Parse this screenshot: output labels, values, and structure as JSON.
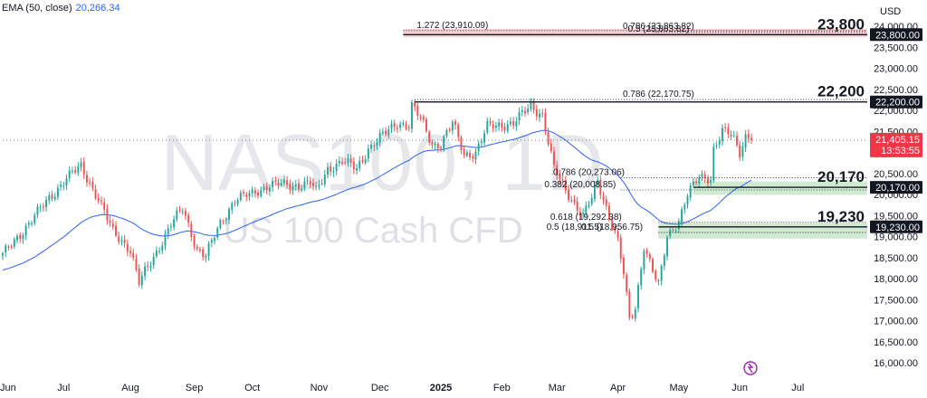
{
  "legend": {
    "name": "EMA (50, close)",
    "value": "20,266.34",
    "color": "#2962ff"
  },
  "watermark": {
    "symbol": "NAS100, 1D",
    "description": "US 100 Cash CFD"
  },
  "axis": {
    "unit": "USD"
  },
  "colors": {
    "up": "#26a69a",
    "down": "#ef5350",
    "ema": "#2962ff",
    "resistance_zone": "#f8c9cc",
    "support_zone": "#c8e6c9",
    "price_tag": "#f23645"
  },
  "chart_data": {
    "type": "candlestick",
    "title": "NAS100, 1D",
    "subtitle": "US 100 Cash CFD",
    "ylabel": "USD",
    "ylim": [
      15800,
      24300
    ],
    "yticks": [
      "16,000.00",
      "16,500.00",
      "17,000.00",
      "17,500.00",
      "18,000.00",
      "18,500.00",
      "19,000.00",
      "19,500.00",
      "20,000.00",
      "20,500.00",
      "21,000.00",
      "21,500.00",
      "22,000.00",
      "22,500.00",
      "23,000.00",
      "23,500.00",
      "24,000.00"
    ],
    "x_ticks": [
      {
        "label": "Jun",
        "bar": 0
      },
      {
        "label": "Jul",
        "bar": 21
      },
      {
        "label": "Aug",
        "bar": 44
      },
      {
        "label": "Sep",
        "bar": 66
      },
      {
        "label": "Oct",
        "bar": 86
      },
      {
        "label": "Nov",
        "bar": 109
      },
      {
        "label": "Dec",
        "bar": 130
      },
      {
        "label": "2025",
        "bar": 151,
        "bold": true
      },
      {
        "label": "Feb",
        "bar": 172
      },
      {
        "label": "Mar",
        "bar": 191
      },
      {
        "label": "Apr",
        "bar": 212
      },
      {
        "label": "May",
        "bar": 233
      },
      {
        "label": "Jun",
        "bar": 254
      },
      {
        "label": "Jul",
        "bar": 274
      }
    ],
    "close_anchors": [
      [
        0,
        18550
      ],
      [
        10,
        19400
      ],
      [
        22,
        20400
      ],
      [
        27,
        20650
      ],
      [
        33,
        19900
      ],
      [
        38,
        19100
      ],
      [
        44,
        18700
      ],
      [
        47,
        17900
      ],
      [
        52,
        18500
      ],
      [
        58,
        19300
      ],
      [
        62,
        19650
      ],
      [
        67,
        18700
      ],
      [
        70,
        18550
      ],
      [
        75,
        19300
      ],
      [
        80,
        19900
      ],
      [
        86,
        20000
      ],
      [
        92,
        20250
      ],
      [
        100,
        20200
      ],
      [
        106,
        20300
      ],
      [
        108,
        20050
      ],
      [
        112,
        20600
      ],
      [
        117,
        20800
      ],
      [
        122,
        20600
      ],
      [
        126,
        21100
      ],
      [
        131,
        21400
      ],
      [
        136,
        21700
      ],
      [
        140,
        21650
      ],
      [
        141,
        22100
      ],
      [
        144,
        21800
      ],
      [
        148,
        21200
      ],
      [
        151,
        21200
      ],
      [
        155,
        21700
      ],
      [
        159,
        20950
      ],
      [
        163,
        21000
      ],
      [
        167,
        21600
      ],
      [
        171,
        21650
      ],
      [
        176,
        21700
      ],
      [
        182,
        22100
      ],
      [
        186,
        21900
      ],
      [
        190,
        20600
      ],
      [
        194,
        20100
      ],
      [
        198,
        19700
      ],
      [
        200,
        19500
      ],
      [
        203,
        19900
      ],
      [
        205,
        20300
      ],
      [
        208,
        19700
      ],
      [
        212,
        18900
      ],
      [
        214,
        18100
      ],
      [
        216,
        17000
      ],
      [
        218,
        17300
      ],
      [
        221,
        18800
      ],
      [
        224,
        18200
      ],
      [
        226,
        17800
      ],
      [
        229,
        19000
      ],
      [
        233,
        19400
      ],
      [
        236,
        20000
      ],
      [
        240,
        20400
      ],
      [
        244,
        20400
      ],
      [
        245,
        21100
      ],
      [
        248,
        21500
      ],
      [
        250,
        21450
      ],
      [
        252,
        21300
      ],
      [
        254,
        21000
      ],
      [
        256,
        21400
      ],
      [
        258,
        21405
      ]
    ],
    "last_price": "21,405.15",
    "countdown": "13:53:55",
    "ema": {
      "name": "EMA (50, close)",
      "period": 50,
      "last": 20266.34
    },
    "levels": [
      {
        "value": 23800,
        "label": "23,800",
        "axis_label": "23,800.00"
      },
      {
        "value": 22200,
        "label": "22,200",
        "axis_label": "22,200.00"
      },
      {
        "value": 20170,
        "label": "20,170",
        "axis_label": "20,170.00"
      },
      {
        "value": 19230,
        "label": "19,230",
        "axis_label": "19,230.00"
      }
    ],
    "zones": [
      {
        "kind": "resistance",
        "from": 23740,
        "to": 23940,
        "start_bar": 138
      },
      {
        "kind": "support",
        "from": 19990,
        "to": 20310,
        "start_bar": 238
      },
      {
        "kind": "support",
        "from": 18950,
        "to": 19320,
        "start_bar": 226
      }
    ],
    "fib_labels": [
      {
        "text": "1.272 (23,910.09)",
        "bar": 155,
        "price": 23940,
        "line_from": 138,
        "line_to": 276
      },
      {
        "text": "0.786 (23,863.82)",
        "bar": 226,
        "price": 23910,
        "line_from": 224,
        "line_to": 276
      },
      {
        "text": "0.5 (23,863.82)",
        "bar": 226,
        "price": 23850,
        "line_from": 224,
        "line_to": 276
      },
      {
        "text": "0.786 (22,170.75)",
        "bar": 226,
        "price": 22300,
        "line_from": 142,
        "line_to": 276
      },
      {
        "text": "0.786 (20,273.06)",
        "bar": 202,
        "price": 20440,
        "line_from": 213,
        "line_to": 276
      },
      {
        "text": "0.382 (20,008.85)",
        "bar": 199,
        "price": 20150,
        "line_from": 213,
        "line_to": 276
      },
      {
        "text": "0.618 (19,292.38)",
        "bar": 201,
        "price": 19380,
        "line_from": 226,
        "line_to": 276
      },
      {
        "text": "0.5 (18,911.5)",
        "bar": 197,
        "price": 19140,
        "line_from": 226,
        "line_to": 276
      },
      {
        "text": "0.5 (18,956.75)",
        "bar": 210,
        "price": 19140,
        "line_from": 226,
        "line_to": 276
      }
    ]
  }
}
